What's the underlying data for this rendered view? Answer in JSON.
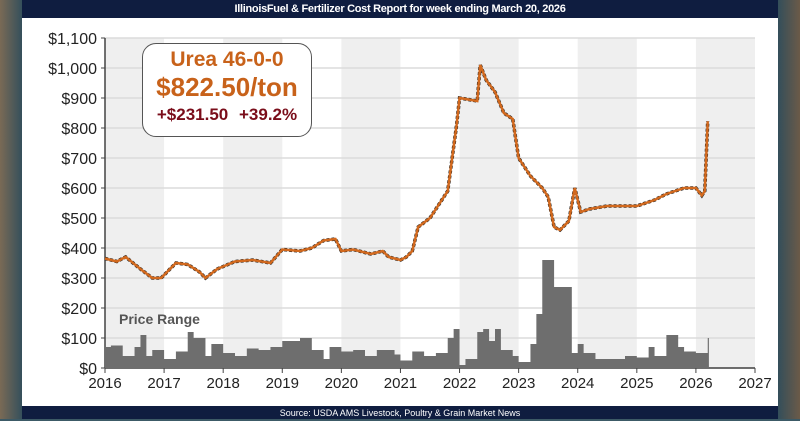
{
  "header": {
    "title": "IllinoisFuel & Fertilizer Cost Report for week ending March 20, 2026"
  },
  "footer": {
    "source": "Source: USDA AMS Livestock, Poultry & Grain Market News"
  },
  "callout": {
    "product": "Urea 46-0-0",
    "price": "$822.50/ton",
    "change": "+$231.50",
    "change_pct": "+39.2%"
  },
  "colors": {
    "price_line": "#d2691e",
    "range_fill": "#6e6e6e",
    "banner": "#0f1d40"
  },
  "chart_data": {
    "type": "line",
    "title": "Urea 46-0-0",
    "xlabel": "",
    "ylabel": "",
    "xlim": [
      2016,
      2027
    ],
    "ylim": [
      0,
      1100
    ],
    "x_ticks": [
      "2016",
      "2017",
      "2018",
      "2019",
      "2020",
      "2021",
      "2022",
      "2023",
      "2024",
      "2025",
      "2026",
      "2027"
    ],
    "y_ticks": [
      "$0",
      "$100",
      "$200",
      "$300",
      "$400",
      "$500",
      "$600",
      "$700",
      "$800",
      "$900",
      "$1,000",
      "$1,100"
    ],
    "range_label": "Price Range",
    "series": [
      {
        "name": "Price",
        "x": [
          2016.0,
          2016.2,
          2016.35,
          2016.6,
          2016.8,
          2016.95,
          2017.2,
          2017.4,
          2017.6,
          2017.7,
          2017.9,
          2018.2,
          2018.5,
          2018.8,
          2019.0,
          2019.3,
          2019.5,
          2019.7,
          2019.9,
          2020.0,
          2020.2,
          2020.5,
          2020.7,
          2020.8,
          2021.0,
          2021.1,
          2021.2,
          2021.3,
          2021.5,
          2021.7,
          2021.8,
          2021.95,
          2022.0,
          2022.3,
          2022.35,
          2022.45,
          2022.6,
          2022.75,
          2022.9,
          2023.0,
          2023.2,
          2023.4,
          2023.5,
          2023.6,
          2023.7,
          2023.85,
          2023.95,
          2024.05,
          2024.2,
          2024.5,
          2025.0,
          2025.3,
          2025.5,
          2025.8,
          2026.0,
          2026.1,
          2026.15,
          2026.2
        ],
        "y": [
          365,
          355,
          370,
          330,
          300,
          300,
          350,
          345,
          320,
          300,
          330,
          355,
          360,
          350,
          395,
          390,
          400,
          425,
          430,
          390,
          395,
          380,
          390,
          370,
          360,
          370,
          390,
          470,
          500,
          560,
          590,
          810,
          900,
          890,
          1010,
          960,
          920,
          850,
          830,
          700,
          640,
          600,
          570,
          470,
          460,
          490,
          600,
          520,
          530,
          540,
          540,
          560,
          580,
          600,
          600,
          575,
          590,
          822.5
        ]
      },
      {
        "name": "Price Range",
        "x": [
          2016.0,
          2016.1,
          2016.3,
          2016.5,
          2016.6,
          2016.7,
          2016.8,
          2017.0,
          2017.2,
          2017.4,
          2017.5,
          2017.7,
          2017.8,
          2018.0,
          2018.2,
          2018.4,
          2018.6,
          2018.8,
          2019.0,
          2019.3,
          2019.5,
          2019.7,
          2019.8,
          2020.0,
          2020.2,
          2020.4,
          2020.6,
          2020.9,
          2021.0,
          2021.2,
          2021.4,
          2021.6,
          2021.8,
          2021.9,
          2022.0,
          2022.1,
          2022.3,
          2022.4,
          2022.5,
          2022.6,
          2022.7,
          2022.9,
          2023.0,
          2023.2,
          2023.3,
          2023.4,
          2023.6,
          2023.9,
          2024.0,
          2024.1,
          2024.3,
          2024.6,
          2024.8,
          2025.0,
          2025.2,
          2025.3,
          2025.5,
          2025.7,
          2025.8,
          2026.0,
          2026.2
        ],
        "y": [
          70,
          75,
          40,
          70,
          110,
          40,
          60,
          30,
          55,
          120,
          100,
          40,
          80,
          50,
          40,
          65,
          60,
          70,
          90,
          100,
          60,
          30,
          70,
          55,
          60,
          40,
          60,
          45,
          25,
          55,
          40,
          50,
          100,
          130,
          10,
          30,
          120,
          130,
          90,
          130,
          60,
          40,
          20,
          80,
          180,
          360,
          270,
          50,
          80,
          50,
          30,
          30,
          40,
          35,
          70,
          40,
          110,
          70,
          55,
          50,
          100
        ]
      }
    ]
  }
}
